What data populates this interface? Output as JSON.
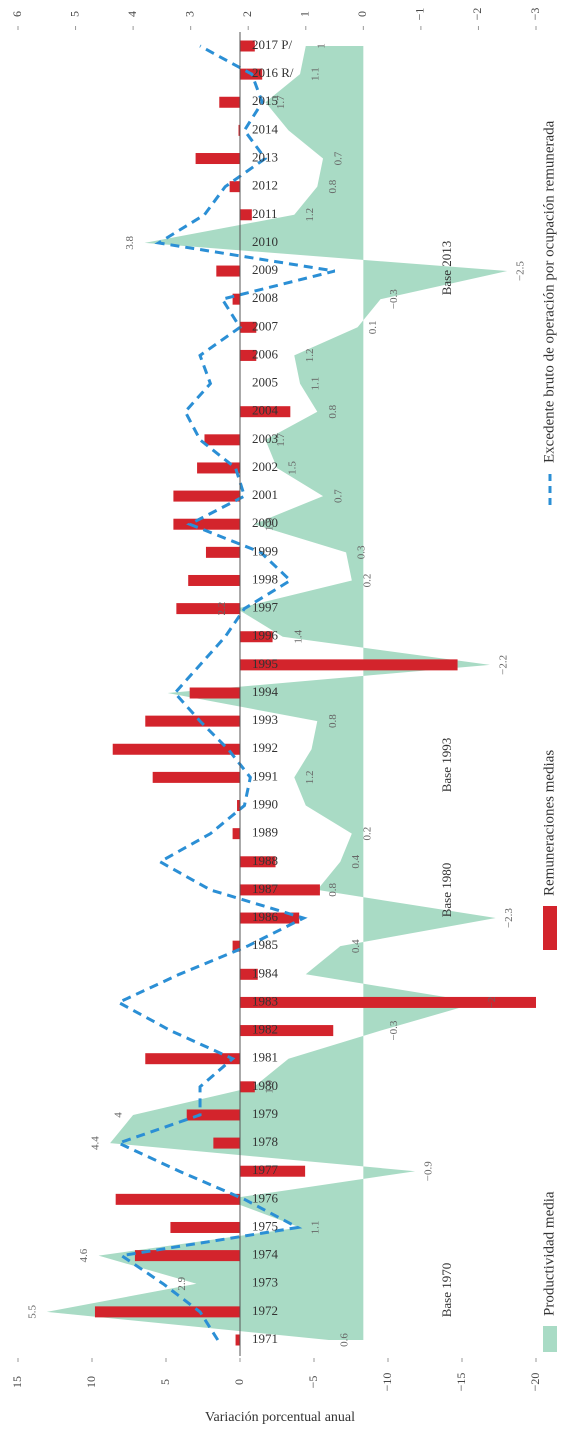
{
  "chart_data": {
    "type": "combo",
    "axis_title": "Variación porcentual anual",
    "categories": [
      "1971",
      "1972",
      "1973",
      "1974",
      "1975",
      "1976",
      "1977",
      "1978",
      "1979",
      "1980",
      "1981",
      "1982",
      "1983",
      "1984",
      "1985",
      "1986",
      "1987",
      "1988",
      "1989",
      "1990",
      "1991",
      "1992",
      "1993",
      "1994",
      "1995",
      "1996",
      "1997",
      "1998",
      "1999",
      "2000",
      "2001",
      "2002",
      "2003",
      "2004",
      "2005",
      "2006",
      "2007",
      "2008",
      "2009",
      "2010",
      "2011",
      "2012",
      "2013",
      "2014",
      "2015",
      "2016 R/",
      "2017 P/"
    ],
    "series": [
      {
        "name": "Productividad media",
        "kind": "area",
        "axis": "y2",
        "color": "#a9dbc5",
        "values": [
          0.6,
          5.5,
          2.9,
          4.6,
          1.1,
          2.4,
          -0.9,
          4.4,
          4,
          1.9,
          1.3,
          -0.3,
          -2,
          1.0,
          0.4,
          -2.3,
          0.8,
          0.4,
          0.2,
          1.0,
          1.2,
          0.9,
          0.8,
          3.4,
          -2.2,
          1.4,
          2.2,
          0.2,
          0.3,
          1.9,
          0.7,
          1.5,
          1.7,
          0.8,
          1.1,
          1.2,
          0.1,
          -0.3,
          -2.5,
          3.8,
          1.2,
          0.8,
          0.7,
          1.3,
          1.7,
          1.1,
          1
        ],
        "value_labels": [
          "0.6",
          "5.5",
          "2.9",
          "4.6",
          "1.1",
          null,
          "−0.9",
          "4.4",
          "4",
          "1.9",
          null,
          "−0.3",
          "−2",
          null,
          "0.4",
          "−2.3",
          "0.8",
          "0.4",
          "0.2",
          null,
          "1.2",
          null,
          "0.8",
          null,
          "−2.2",
          "1.4",
          "2.2",
          "0.2",
          "0.3",
          "1.9",
          "0.7",
          "1.5",
          "1.7",
          "0.8",
          "1.1",
          "1.2",
          "0.1",
          "−0.3",
          "−2.5",
          "3.8",
          "1.2",
          "0.8",
          "0.7",
          null,
          "1.7",
          "1.1",
          "1"
        ]
      },
      {
        "name": "Remuneraciones medias",
        "kind": "bar",
        "color": "#d3242c",
        "values": [
          0.3,
          9.8,
          0,
          7.1,
          4.7,
          8.4,
          -4.4,
          1.8,
          3.6,
          -1.0,
          6.4,
          -6.3,
          -20,
          -1.2,
          0.5,
          -4,
          -5.4,
          -2.4,
          0.5,
          0.2,
          5.9,
          8.6,
          6.4,
          3.4,
          -14.7,
          -2.2,
          4.3,
          3.5,
          2.3,
          4.5,
          4.5,
          2.9,
          2.4,
          -3.4,
          0,
          -1.1,
          -1.1,
          0.5,
          1.6,
          0,
          -0.8,
          0.7,
          3.0,
          0.1,
          1.4,
          -1.5,
          -1.0
        ]
      },
      {
        "name": "Excedente bruto de operación por ocupación remunerada",
        "kind": "line",
        "dash": true,
        "color": "#2b8fd5",
        "values": [
          1.5,
          2.7,
          5.2,
          8.0,
          -3.9,
          -0.3,
          4.1,
          8.2,
          2.7,
          2.7,
          0.5,
          4.7,
          8.2,
          4.1,
          -0.5,
          -4.3,
          2.0,
          5.4,
          2.0,
          -0.3,
          -0.7,
          0.8,
          2.7,
          4.4,
          2.7,
          1.0,
          -0.3,
          -3.4,
          -1.4,
          3.4,
          -0.3,
          0.3,
          2.7,
          3.7,
          2.0,
          2.7,
          0.0,
          1.2,
          -6.4,
          5.5,
          2.4,
          1.0,
          -1.7,
          -0.3,
          -1.5,
          -0.8,
          2.7
        ]
      }
    ],
    "ylim": [
      15,
      -20
    ],
    "yticks": [
      15,
      10,
      5,
      0,
      {
        "value": -5,
        "label": "−5"
      },
      {
        "value": -10,
        "label": "−10"
      },
      {
        "value": -15,
        "label": "−15"
      },
      {
        "value": -20,
        "label": "−20"
      }
    ],
    "y2lim": [
      6,
      -3
    ],
    "y2ticks": [
      6,
      5,
      4,
      3,
      2,
      1,
      0,
      {
        "value": -1,
        "label": "−1"
      },
      {
        "value": -2,
        "label": "−2"
      },
      {
        "value": -3,
        "label": "−3"
      }
    ],
    "annotations": [
      "Base 1970",
      "Base 1980",
      "Base 1993",
      "Base 2013"
    ],
    "legend": "bottom"
  }
}
